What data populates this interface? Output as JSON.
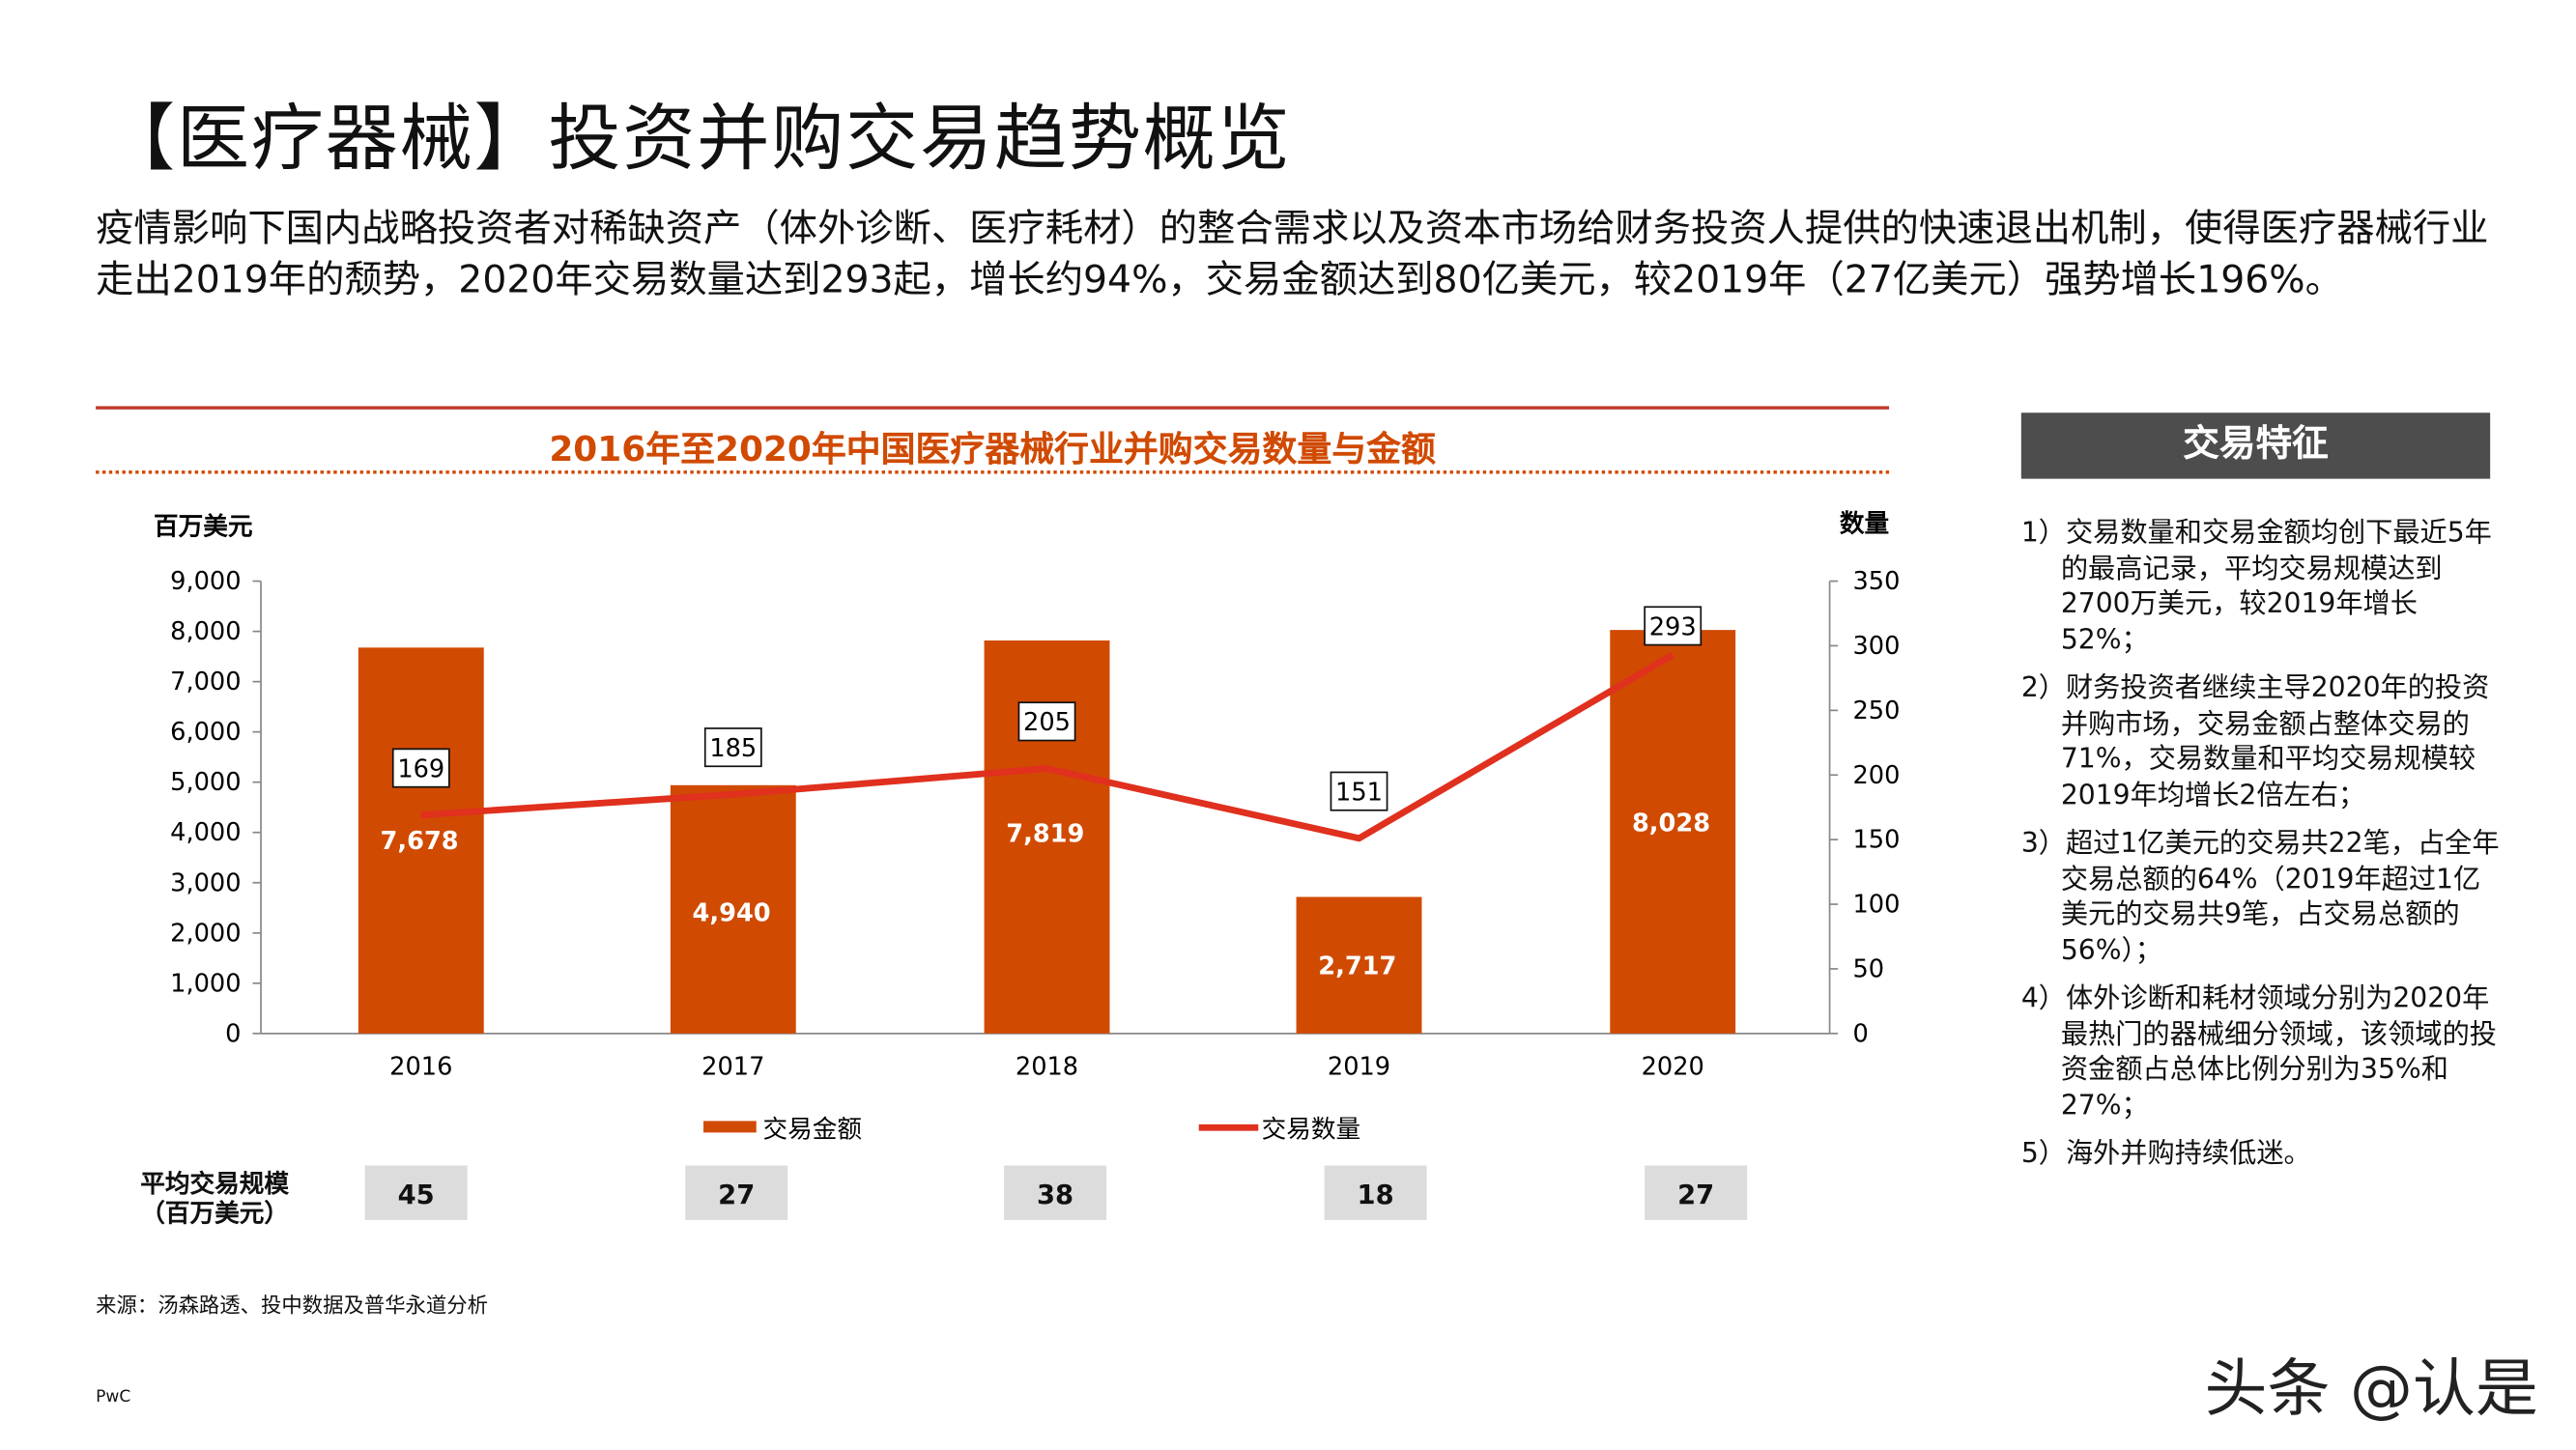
{
  "title": "【医疗器械】投资并购交易趋势概览",
  "intro": "疫情影响下国内战略投资者对稀缺资产（体外诊断、医疗耗材）的整合需求以及资本市场给财务投资人提供的快速退出机制，使得医疗器械行业走出2019年的颓势，2020年交易数量达到293起，增长约94%，交易金额达到80亿美元，较2019年（27亿美元）强势增长196%。",
  "chart_data": {
    "type": "bar+line",
    "title": "2016年至2020年中国医疗器械行业并购交易数量与金额",
    "categories": [
      "2016",
      "2017",
      "2018",
      "2019",
      "2020"
    ],
    "y_left": {
      "label": "百万美元",
      "range": [
        0,
        9000
      ],
      "ticks": [
        "0",
        "1,000",
        "2,000",
        "3,000",
        "4,000",
        "5,000",
        "6,000",
        "7,000",
        "8,000",
        "9,000"
      ]
    },
    "y_right": {
      "label": "数量",
      "range": [
        0,
        350
      ],
      "ticks": [
        "0",
        "50",
        "100",
        "150",
        "200",
        "250",
        "300",
        "350"
      ]
    },
    "series": [
      {
        "name": "交易金额",
        "type": "bar",
        "values": [
          7678,
          4940,
          7819,
          2717,
          8028
        ],
        "labels": [
          "7,678",
          "4,940",
          "7,819",
          "2,717",
          "8,028"
        ],
        "color": "#d04a02"
      },
      {
        "name": "交易数量",
        "type": "line",
        "axis": "right",
        "values": [
          169,
          185,
          205,
          151,
          293
        ],
        "color": "#e0301e"
      }
    ],
    "grid": false,
    "legend": "bottom"
  },
  "avg": {
    "label_line1": "平均交易规模",
    "label_line2": "（百万美元）",
    "values": [
      "45",
      "27",
      "38",
      "18",
      "27"
    ]
  },
  "panel": {
    "title": "交易特征",
    "items": [
      "1）交易数量和交易金额均创下最近5年的最高记录，平均交易规模达到2700万美元，较2019年增长52%；",
      "2）财务投资者继续主导2020年的投资并购市场，交易金额占整体交易的71%，交易数量和平均交易规模较2019年均增长2倍左右；",
      "3）超过1亿美元的交易共22笔，占全年交易总额的64%（2019年超过1亿美元的交易共9笔，占交易总额的56%）；",
      "4）体外诊断和耗材领域分别为2020年最热门的器械细分领域，该领域的投资金额占总体比例分别为35%和27%；",
      "5）海外并购持续低迷。"
    ]
  },
  "source": "来源：汤森路透、投中数据及普华永道分析",
  "footer": "PwC",
  "watermark": "头条 @认是"
}
